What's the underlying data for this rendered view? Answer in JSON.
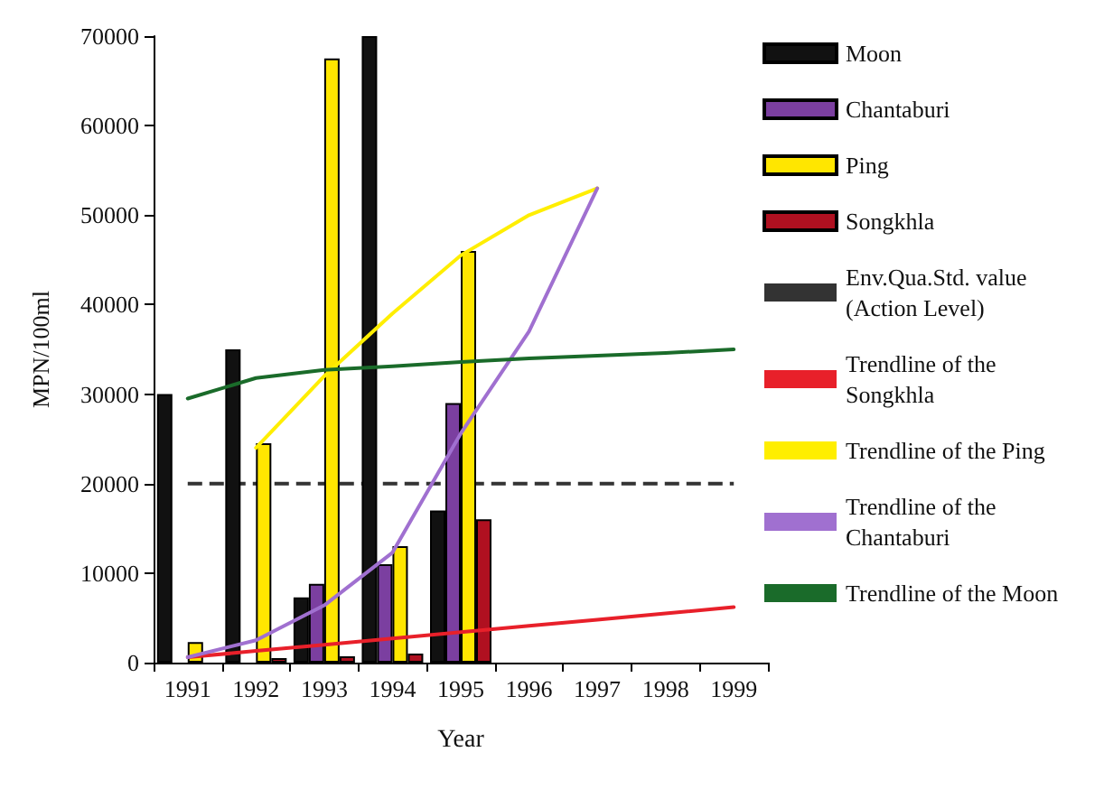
{
  "chart_data": {
    "type": "bar",
    "xlabel": "Year",
    "ylabel": "MPN/100ml",
    "categories": [
      "1991",
      "1992",
      "1993",
      "1994",
      "1995",
      "1996",
      "1997",
      "1998",
      "1999"
    ],
    "series": [
      {
        "name": "Moon",
        "color": "#111111",
        "values": [
          30000,
          35000,
          7300,
          70000,
          17000,
          null,
          null,
          null,
          null
        ]
      },
      {
        "name": "Chantaburi",
        "color": "#7b3fa0",
        "values": [
          null,
          null,
          8800,
          11000,
          29000,
          null,
          null,
          null,
          null
        ]
      },
      {
        "name": "Ping",
        "color": "#ffe600",
        "values": [
          2300,
          24500,
          67500,
          13000,
          46000,
          null,
          null,
          null,
          null
        ]
      },
      {
        "name": "Songkhla",
        "color": "#b01020",
        "values": [
          null,
          500,
          700,
          1000,
          16000,
          null,
          null,
          null,
          null
        ]
      },
      {
        "name": "Trendline of the Songkhla",
        "type": "line",
        "color": "#e8202a",
        "values": [
          600,
          1300,
          2000,
          2700,
          3400,
          4100,
          4800,
          5500,
          6200
        ]
      },
      {
        "name": "Trendline of the Ping",
        "type": "line",
        "color": "#ffee00",
        "values": [
          null,
          24000,
          32000,
          39000,
          45500,
          50000,
          53000,
          null,
          null
        ]
      },
      {
        "name": "Trendline of the Chantaburi",
        "type": "line",
        "color": "#a070d0",
        "values": [
          600,
          2500,
          6400,
          12300,
          25600,
          37000,
          53000,
          null,
          null
        ]
      },
      {
        "name": "Trendline of the Moon",
        "type": "line",
        "color": "#1a6b2a",
        "values": [
          29500,
          31800,
          32700,
          33100,
          33600,
          34000,
          34300,
          34600,
          35000
        ]
      }
    ],
    "ref_lines": [
      {
        "axis": "y",
        "value": 20000,
        "label": "Env.Qua.Std. value (Action Level)",
        "color": "#333333",
        "line_style": "dashed"
      }
    ],
    "ylim": [
      0,
      70000
    ],
    "yticks": [
      0,
      10000,
      20000,
      30000,
      40000,
      50000,
      60000,
      70000
    ],
    "grid": false,
    "legend": "right",
    "marker": "none",
    "line_style": "solid"
  }
}
